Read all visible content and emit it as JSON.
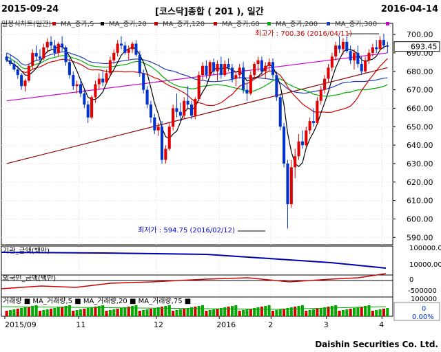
{
  "header": {
    "start_date": "2015-09-24",
    "title": "[코스닥]종합 ( 201 ), 일간",
    "end_date": "2016-04-14"
  },
  "footer": {
    "company": "Daishin Securities Co. Ltd."
  },
  "chart_data": {
    "type": "candlestick",
    "main_panel": {
      "legend": [
        {
          "label": "일봉식차트(일간)",
          "color": "#cc0000"
        },
        {
          "label": "MA_종가,5",
          "color": "#000000"
        },
        {
          "label": "MA_종가,20",
          "color": "#cc0000"
        },
        {
          "label": "MA_종가,120",
          "color": "#c80000"
        },
        {
          "label": "MA_종가,60",
          "color": "#00aa00"
        },
        {
          "label": "MA_종가,200",
          "color": "#1e3cb4"
        },
        {
          "label": "MA_종가,300",
          "color": "#cc00cc"
        }
      ],
      "ylim": [
        586,
        706
      ],
      "yticks": [
        590,
        600,
        610,
        620,
        630,
        640,
        650,
        660,
        670,
        680,
        690,
        700
      ],
      "current_value": "693.45",
      "annotations": [
        {
          "label": "최고가 : 700.36 (2016/04/11)",
          "value": 700.36,
          "color": "#cc0000"
        },
        {
          "label": "최저가 : 594.75 (2016/02/12)",
          "value": 594.75,
          "color": "#0000cc"
        }
      ],
      "candles": [
        [
          688,
          690,
          685,
          686
        ],
        [
          686,
          689,
          683,
          684
        ],
        [
          684,
          686,
          680,
          681
        ],
        [
          681,
          683,
          676,
          678
        ],
        [
          678,
          679,
          670,
          672
        ],
        [
          672,
          676,
          669,
          675
        ],
        [
          675,
          684,
          674,
          683
        ],
        [
          683,
          692,
          681,
          690
        ],
        [
          690,
          694,
          686,
          688
        ],
        [
          688,
          692,
          684,
          687
        ],
        [
          687,
          695,
          686,
          693
        ],
        [
          693,
          698,
          690,
          696
        ],
        [
          696,
          699,
          692,
          694
        ],
        [
          694,
          697,
          688,
          690
        ],
        [
          690,
          696,
          688,
          695
        ],
        [
          695,
          699,
          691,
          693
        ],
        [
          693,
          694,
          683,
          685
        ],
        [
          685,
          687,
          676,
          678
        ],
        [
          678,
          680,
          670,
          672
        ],
        [
          672,
          675,
          668,
          673
        ],
        [
          673,
          676,
          666,
          668
        ],
        [
          668,
          670,
          660,
          662
        ],
        [
          662,
          664,
          652,
          655
        ],
        [
          655,
          667,
          654,
          666
        ],
        [
          666,
          675,
          663,
          673
        ],
        [
          673,
          679,
          670,
          676
        ],
        [
          676,
          680,
          672,
          674
        ],
        [
          674,
          681,
          673,
          679
        ],
        [
          679,
          688,
          677,
          686
        ],
        [
          686,
          692,
          684,
          690
        ],
        [
          690,
          697,
          688,
          695
        ],
        [
          695,
          699,
          692,
          694
        ],
        [
          694,
          696,
          689,
          690
        ],
        [
          690,
          694,
          686,
          692
        ],
        [
          692,
          696,
          690,
          695
        ],
        [
          695,
          697,
          688,
          689
        ],
        [
          689,
          691,
          677,
          679
        ],
        [
          679,
          681,
          668,
          670
        ],
        [
          670,
          672,
          660,
          662
        ],
        [
          662,
          664,
          652,
          655
        ],
        [
          655,
          657,
          646,
          648
        ],
        [
          648,
          652,
          645,
          650
        ],
        [
          650,
          653,
          630,
          632
        ],
        [
          632,
          640,
          630,
          638
        ],
        [
          638,
          652,
          637,
          650
        ],
        [
          650,
          662,
          648,
          660
        ],
        [
          660,
          668,
          655,
          658
        ],
        [
          658,
          663,
          653,
          656
        ],
        [
          656,
          666,
          654,
          664
        ],
        [
          664,
          672,
          660,
          662
        ],
        [
          662,
          664,
          654,
          656
        ],
        [
          656,
          666,
          654,
          665
        ],
        [
          665,
          680,
          664,
          678
        ],
        [
          678,
          685,
          675,
          683
        ],
        [
          683,
          686,
          676,
          678
        ],
        [
          678,
          686,
          677,
          685
        ],
        [
          685,
          687,
          678,
          680
        ],
        [
          680,
          686,
          675,
          684
        ],
        [
          684,
          688,
          676,
          678
        ],
        [
          678,
          686,
          677,
          684
        ],
        [
          684,
          687,
          680,
          682
        ],
        [
          682,
          684,
          674,
          676
        ],
        [
          676,
          680,
          672,
          678
        ],
        [
          678,
          684,
          676,
          682
        ],
        [
          682,
          685,
          668,
          670
        ],
        [
          670,
          674,
          664,
          668
        ],
        [
          668,
          680,
          667,
          678
        ],
        [
          678,
          685,
          676,
          684
        ],
        [
          684,
          688,
          680,
          686
        ],
        [
          686,
          688,
          678,
          680
        ],
        [
          680,
          685,
          676,
          683
        ],
        [
          683,
          687,
          680,
          685
        ],
        [
          685,
          687,
          676,
          678
        ],
        [
          678,
          680,
          664,
          666
        ],
        [
          666,
          668,
          648,
          650
        ],
        [
          650,
          652,
          628,
          630
        ],
        [
          630,
          632,
          594.75,
          608
        ],
        [
          608,
          632,
          606,
          628
        ],
        [
          628,
          638,
          622,
          634
        ],
        [
          634,
          646,
          632,
          642
        ],
        [
          642,
          648,
          638,
          640
        ],
        [
          640,
          650,
          639,
          648
        ],
        [
          648,
          655,
          646,
          653
        ],
        [
          653,
          660,
          650,
          652
        ],
        [
          652,
          666,
          651,
          664
        ],
        [
          664,
          672,
          662,
          670
        ],
        [
          670,
          678,
          668,
          676
        ],
        [
          676,
          684,
          674,
          682
        ],
        [
          682,
          690,
          680,
          688
        ],
        [
          688,
          696,
          686,
          694
        ],
        [
          694,
          699,
          690,
          692
        ],
        [
          692,
          698,
          689,
          696
        ],
        [
          696,
          699,
          690,
          691
        ],
        [
          691,
          694,
          684,
          686
        ],
        [
          686,
          692,
          681,
          690
        ],
        [
          690,
          694,
          682,
          684
        ],
        [
          684,
          688,
          678,
          680
        ],
        [
          680,
          688,
          679,
          686
        ],
        [
          686,
          692,
          684,
          690
        ],
        [
          690,
          695,
          688,
          693
        ],
        [
          693,
          697,
          690,
          692
        ],
        [
          692,
          699,
          691,
          697
        ],
        [
          697,
          700.36,
          692,
          694
        ],
        [
          694,
          696,
          690,
          693.45
        ]
      ]
    },
    "panels": [
      {
        "label": "기관_금액(백만)",
        "yticks": [
          "100000.00",
          "10000.00"
        ]
      },
      {
        "label": "외국인_금액(백만)",
        "yticks": [
          "0",
          "-500000"
        ]
      },
      {
        "label": "거래량 ■ MA_거래량,5 ■ MA_거래량,20 ■ MA_거래량,75 ■",
        "yticks": [
          "100000",
          "0",
          "0.00%"
        ]
      }
    ],
    "x_labels": [
      "2015/09",
      "11",
      "12",
      "2016",
      "2",
      "3",
      "4"
    ]
  }
}
